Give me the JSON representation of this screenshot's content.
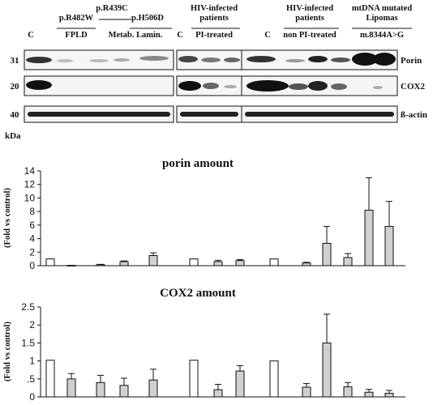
{
  "blot": {
    "group_headers": [
      {
        "lines": [
          "C"
        ]
      },
      {
        "lines": [
          "p.R482W",
          "FPLD"
        ]
      },
      {
        "lines": [
          "p.R439C",
          "Metab. Lamin."
        ],
        "extra": "p.H506D"
      },
      {
        "lines": [
          "HIV-infected",
          "patients",
          "PI-treated"
        ]
      },
      {
        "lines": [
          "C"
        ]
      },
      {
        "lines": [
          "C"
        ]
      },
      {
        "lines": [
          "HIV-infected",
          "patients",
          "non PI-treated"
        ]
      },
      {
        "lines": [
          "mtDNA mutated",
          "Lipomas",
          "m.8344A>G"
        ]
      }
    ],
    "rows": [
      {
        "kda": "31",
        "label": "Porin"
      },
      {
        "kda": "20",
        "label": "COX2"
      },
      {
        "kda": "40",
        "label": "ß-actin"
      }
    ],
    "kda_label": "kDa"
  },
  "chart_data": [
    {
      "type": "bar",
      "title": "porin amount",
      "ylabel": "(Fold vs control)",
      "ylim": [
        0,
        14
      ],
      "yticks": [
        "0",
        "2",
        "4",
        "6",
        "8",
        "10",
        "12",
        "14"
      ],
      "bars": [
        {
          "value": 1.0,
          "err": 0,
          "fill": "#ffffff"
        },
        {
          "value": 0.05,
          "err": 0,
          "fill": "#d0d0d0"
        },
        {
          "value": 0.15,
          "err": 0.05,
          "fill": "#d0d0d0"
        },
        {
          "value": 0.6,
          "err": 0.1,
          "fill": "#d0d0d0"
        },
        {
          "value": 1.5,
          "err": 0.4,
          "fill": "#d0d0d0"
        },
        {
          "value": 1.0,
          "err": 0,
          "fill": "#ffffff"
        },
        {
          "value": 0.6,
          "err": 0.2,
          "fill": "#d0d0d0"
        },
        {
          "value": 0.75,
          "err": 0.15,
          "fill": "#d0d0d0"
        },
        {
          "value": 1.0,
          "err": 0,
          "fill": "#ffffff"
        },
        {
          "value": 0.4,
          "err": 0.1,
          "fill": "#d0d0d0"
        },
        {
          "value": 3.3,
          "err": 2.5,
          "fill": "#d0d0d0"
        },
        {
          "value": 1.2,
          "err": 0.6,
          "fill": "#d0d0d0"
        },
        {
          "value": 8.2,
          "err": 4.8,
          "fill": "#d0d0d0"
        },
        {
          "value": 5.8,
          "err": 3.7,
          "fill": "#d0d0d0"
        }
      ]
    },
    {
      "type": "bar",
      "title": "COX2 amount",
      "ylabel": "(Fold vs control)",
      "ylim": [
        0,
        2.5
      ],
      "yticks": [
        "0",
        ".5",
        "1",
        "1.5",
        "2",
        "2.5"
      ],
      "bars": [
        {
          "value": 1.02,
          "err": 0,
          "fill": "#ffffff"
        },
        {
          "value": 0.5,
          "err": 0.15,
          "fill": "#d0d0d0"
        },
        {
          "value": 0.4,
          "err": 0.2,
          "fill": "#d0d0d0"
        },
        {
          "value": 0.32,
          "err": 0.2,
          "fill": "#d0d0d0"
        },
        {
          "value": 0.47,
          "err": 0.3,
          "fill": "#d0d0d0"
        },
        {
          "value": 1.02,
          "err": 0,
          "fill": "#ffffff"
        },
        {
          "value": 0.2,
          "err": 0.15,
          "fill": "#d0d0d0"
        },
        {
          "value": 0.72,
          "err": 0.15,
          "fill": "#d0d0d0"
        },
        {
          "value": 1.0,
          "err": 0,
          "fill": "#ffffff"
        },
        {
          "value": 0.27,
          "err": 0.1,
          "fill": "#d0d0d0"
        },
        {
          "value": 1.5,
          "err": 0.8,
          "fill": "#d0d0d0"
        },
        {
          "value": 0.28,
          "err": 0.12,
          "fill": "#d0d0d0"
        },
        {
          "value": 0.13,
          "err": 0.08,
          "fill": "#d0d0d0"
        },
        {
          "value": 0.1,
          "err": 0.08,
          "fill": "#d0d0d0"
        }
      ]
    }
  ]
}
